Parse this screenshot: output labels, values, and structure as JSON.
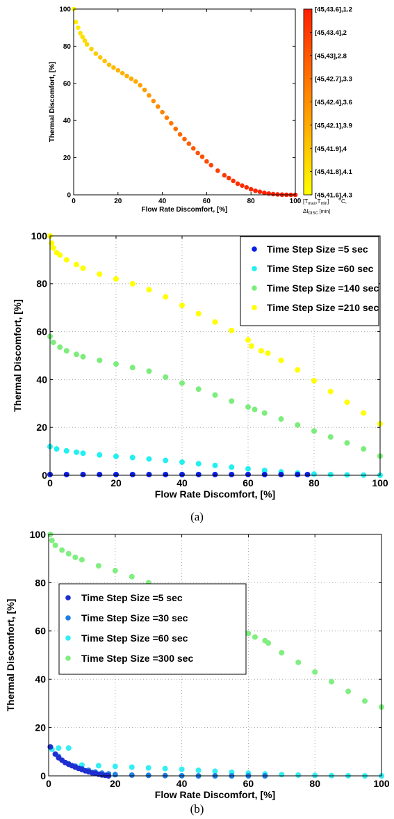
{
  "captions": {
    "a": "(a)",
    "b": "(b)"
  },
  "chart_data": [
    {
      "type": "scatter",
      "id": "top",
      "title": "",
      "xlabel": "Flow Rate Discomfort, [%]",
      "ylabel": "Thermal Discomfort, [%]",
      "xlim": [
        0,
        100
      ],
      "ylim": [
        0,
        100
      ],
      "xticks": [
        0,
        20,
        40,
        60,
        80,
        100
      ],
      "yticks": [
        0,
        20,
        40,
        60,
        80,
        100
      ],
      "grid": false,
      "series": [
        {
          "x": [
            0,
            1,
            2,
            3,
            4,
            5,
            6,
            8,
            10,
            12,
            14,
            16,
            18,
            20,
            22,
            24,
            26,
            28,
            30,
            32,
            34,
            36,
            38,
            40,
            42,
            44,
            46,
            48,
            50,
            52,
            54,
            56,
            58,
            60,
            62,
            65,
            68,
            70,
            72,
            74,
            76,
            78,
            80,
            82,
            84,
            86,
            88,
            90,
            92,
            94,
            96,
            98,
            100
          ],
          "y": [
            100,
            93,
            90,
            87,
            85,
            83,
            81,
            78.5,
            76,
            74,
            72,
            70,
            68.5,
            67,
            65.5,
            64,
            62.5,
            61,
            59,
            56.5,
            53.5,
            50.5,
            47.5,
            44.5,
            41.5,
            38.5,
            35.5,
            32.5,
            30,
            27.5,
            25,
            22.5,
            20.5,
            18,
            16,
            13,
            10.5,
            9,
            7.5,
            6,
            5,
            4,
            3,
            2.2,
            1.6,
            1.1,
            0.7,
            0.4,
            0.2,
            0.1,
            0.05,
            0,
            0
          ]
        }
      ],
      "colorbar": {
        "labels": [
          "[45,43.6],1.2",
          "[45,43.4],2",
          "[45,43],2.8",
          "[45,42.7],3.3",
          "[45,42.4],3.6",
          "[45,42.1],3.9",
          "[45,41.9],4",
          "[45,41.8],4.1",
          "[45,41.6],4.3"
        ],
        "caption_line1": "[T",
        "caption_line1_sub1": "max",
        "caption_line1_mid": ",T",
        "caption_line1_sub2": "min",
        "caption_line1_end": "]",
        "caption_degC": "C,",
        "caption_line2": "Δt",
        "caption_line2_sub": "DISC",
        "caption_line2_end": "[min]",
        "colors": {
          "top": "#ff2000",
          "bottom": "#ffff00"
        }
      }
    },
    {
      "type": "scatter",
      "id": "a",
      "title": "",
      "xlabel": "Flow Rate Discomfort, [%]",
      "ylabel": "Thermal Discomfort, [%]",
      "xlim": [
        0,
        100
      ],
      "ylim": [
        0,
        100
      ],
      "xticks": [
        0,
        20,
        40,
        60,
        80,
        100
      ],
      "yticks": [
        0,
        20,
        40,
        60,
        80,
        100
      ],
      "grid": true,
      "legend": "top-right",
      "series": [
        {
          "name": "Time Step Size =5 sec",
          "color": "#0a1ee6",
          "x": [
            0,
            5,
            10,
            15,
            20,
            25,
            30,
            35,
            40,
            45,
            50,
            55,
            60,
            65,
            70,
            75,
            78
          ],
          "y": [
            0.3,
            0.3,
            0.3,
            0.3,
            0.3,
            0.3,
            0.3,
            0.3,
            0.3,
            0.3,
            0.3,
            0.3,
            0.3,
            0.3,
            0.3,
            0.3,
            0.3
          ]
        },
        {
          "name": "Time Step Size =60 sec",
          "color": "#22f0f0",
          "x": [
            0,
            2,
            5,
            8,
            10,
            15,
            20,
            25,
            30,
            35,
            40,
            45,
            50,
            55,
            60,
            65,
            70,
            75,
            80,
            85,
            90,
            95,
            100
          ],
          "y": [
            12,
            11,
            10.2,
            9.6,
            9.2,
            8.5,
            7.9,
            7.4,
            6.8,
            6.2,
            5.5,
            4.8,
            4.1,
            3.4,
            2.7,
            2.0,
            1.4,
            0.9,
            0.5,
            0.3,
            0.15,
            0.05,
            0
          ]
        },
        {
          "name": "Time Step Size =140 sec",
          "color": "#7ced7c",
          "x": [
            0,
            1,
            3,
            5,
            8,
            10,
            15,
            20,
            25,
            30,
            35,
            40,
            45,
            50,
            55,
            60,
            62,
            65,
            70,
            75,
            80,
            85,
            90,
            95,
            100
          ],
          "y": [
            58,
            55.5,
            53.5,
            52,
            50.5,
            49.5,
            48,
            46.5,
            45,
            43.5,
            41,
            38.5,
            36,
            33.5,
            31,
            28.5,
            27.5,
            26,
            23.5,
            21,
            18.5,
            16,
            13.5,
            11,
            8
          ]
        },
        {
          "name": "Time Step Size =210 sec",
          "color": "#ffff00",
          "x": [
            0,
            0.5,
            1,
            2,
            3,
            5,
            8,
            10,
            15,
            20,
            25,
            30,
            35,
            40,
            45,
            50,
            55,
            60,
            61,
            64,
            66,
            70,
            75,
            80,
            85,
            90,
            95,
            100
          ],
          "y": [
            100,
            97,
            95,
            93,
            92,
            90,
            88,
            86.5,
            84,
            82,
            80,
            77.5,
            74.5,
            71,
            67.5,
            64,
            60.5,
            56.5,
            54,
            52,
            51,
            48,
            44,
            39.5,
            35,
            30.5,
            26,
            21.5
          ]
        }
      ]
    },
    {
      "type": "scatter",
      "id": "b",
      "title": "",
      "xlabel": "Flow Rate Discomfort, [%]",
      "ylabel": "Thermal Discomfort, [%]",
      "xlim": [
        0,
        100
      ],
      "ylim": [
        0,
        100
      ],
      "xticks": [
        0,
        20,
        40,
        60,
        80,
        100
      ],
      "yticks": [
        0,
        20,
        40,
        60,
        80,
        100
      ],
      "grid": true,
      "legend": "middle-left",
      "series": [
        {
          "name": "Time Step Size =5 sec",
          "color": "#1f2ed1",
          "x": [
            0.5,
            2,
            3,
            4,
            5,
            6,
            7,
            8,
            9,
            10,
            11,
            12,
            13,
            14,
            15,
            16,
            17,
            18
          ],
          "y": [
            12,
            9,
            7.5,
            6.5,
            5.5,
            4.8,
            4.2,
            3.6,
            3.1,
            2.6,
            2.1,
            1.7,
            1.3,
            1.0,
            0.7,
            0.4,
            0.2,
            0
          ]
        },
        {
          "name": "Time Step Size =30 sec",
          "color": "#1e7fe6",
          "x": [
            3,
            6,
            8,
            10,
            12,
            14,
            16,
            18,
            20,
            25,
            30,
            35,
            40,
            45,
            50,
            55,
            60,
            65
          ],
          "y": [
            8,
            5,
            4,
            3,
            2.3,
            1.6,
            1.1,
            0.8,
            0.5,
            0.3,
            0.2,
            0.1,
            0.05,
            0,
            0,
            0,
            0,
            0
          ]
        },
        {
          "name": "Time Step Size =60 sec",
          "color": "#33eef2",
          "x": [
            1,
            3,
            6,
            10,
            15,
            20,
            25,
            30,
            35,
            40,
            45,
            50,
            55,
            60,
            65,
            70,
            75,
            80,
            85,
            90,
            95,
            100
          ],
          "y": [
            11,
            11.5,
            11.5,
            4.5,
            4.2,
            3.9,
            3.6,
            3.3,
            3.0,
            2.7,
            2.3,
            1.9,
            1.5,
            1.1,
            0.8,
            0.5,
            0.3,
            0.2,
            0.1,
            0.05,
            0,
            0
          ]
        },
        {
          "name": "Time Step Size =300 sec",
          "color": "#80ee80",
          "x": [
            0.5,
            1,
            2,
            4,
            6,
            8,
            10,
            15,
            20,
            25,
            30,
            35,
            40,
            45,
            50,
            55,
            60,
            62,
            65,
            66,
            70,
            75,
            80,
            85,
            90,
            95,
            100
          ],
          "y": [
            100,
            97.5,
            95.5,
            93.5,
            92,
            90.5,
            89.5,
            87,
            85,
            82.5,
            80,
            77,
            73.5,
            70,
            66,
            62.5,
            59,
            57.5,
            56,
            55,
            51,
            47,
            43,
            39,
            35,
            31,
            28.5
          ]
        }
      ]
    }
  ]
}
